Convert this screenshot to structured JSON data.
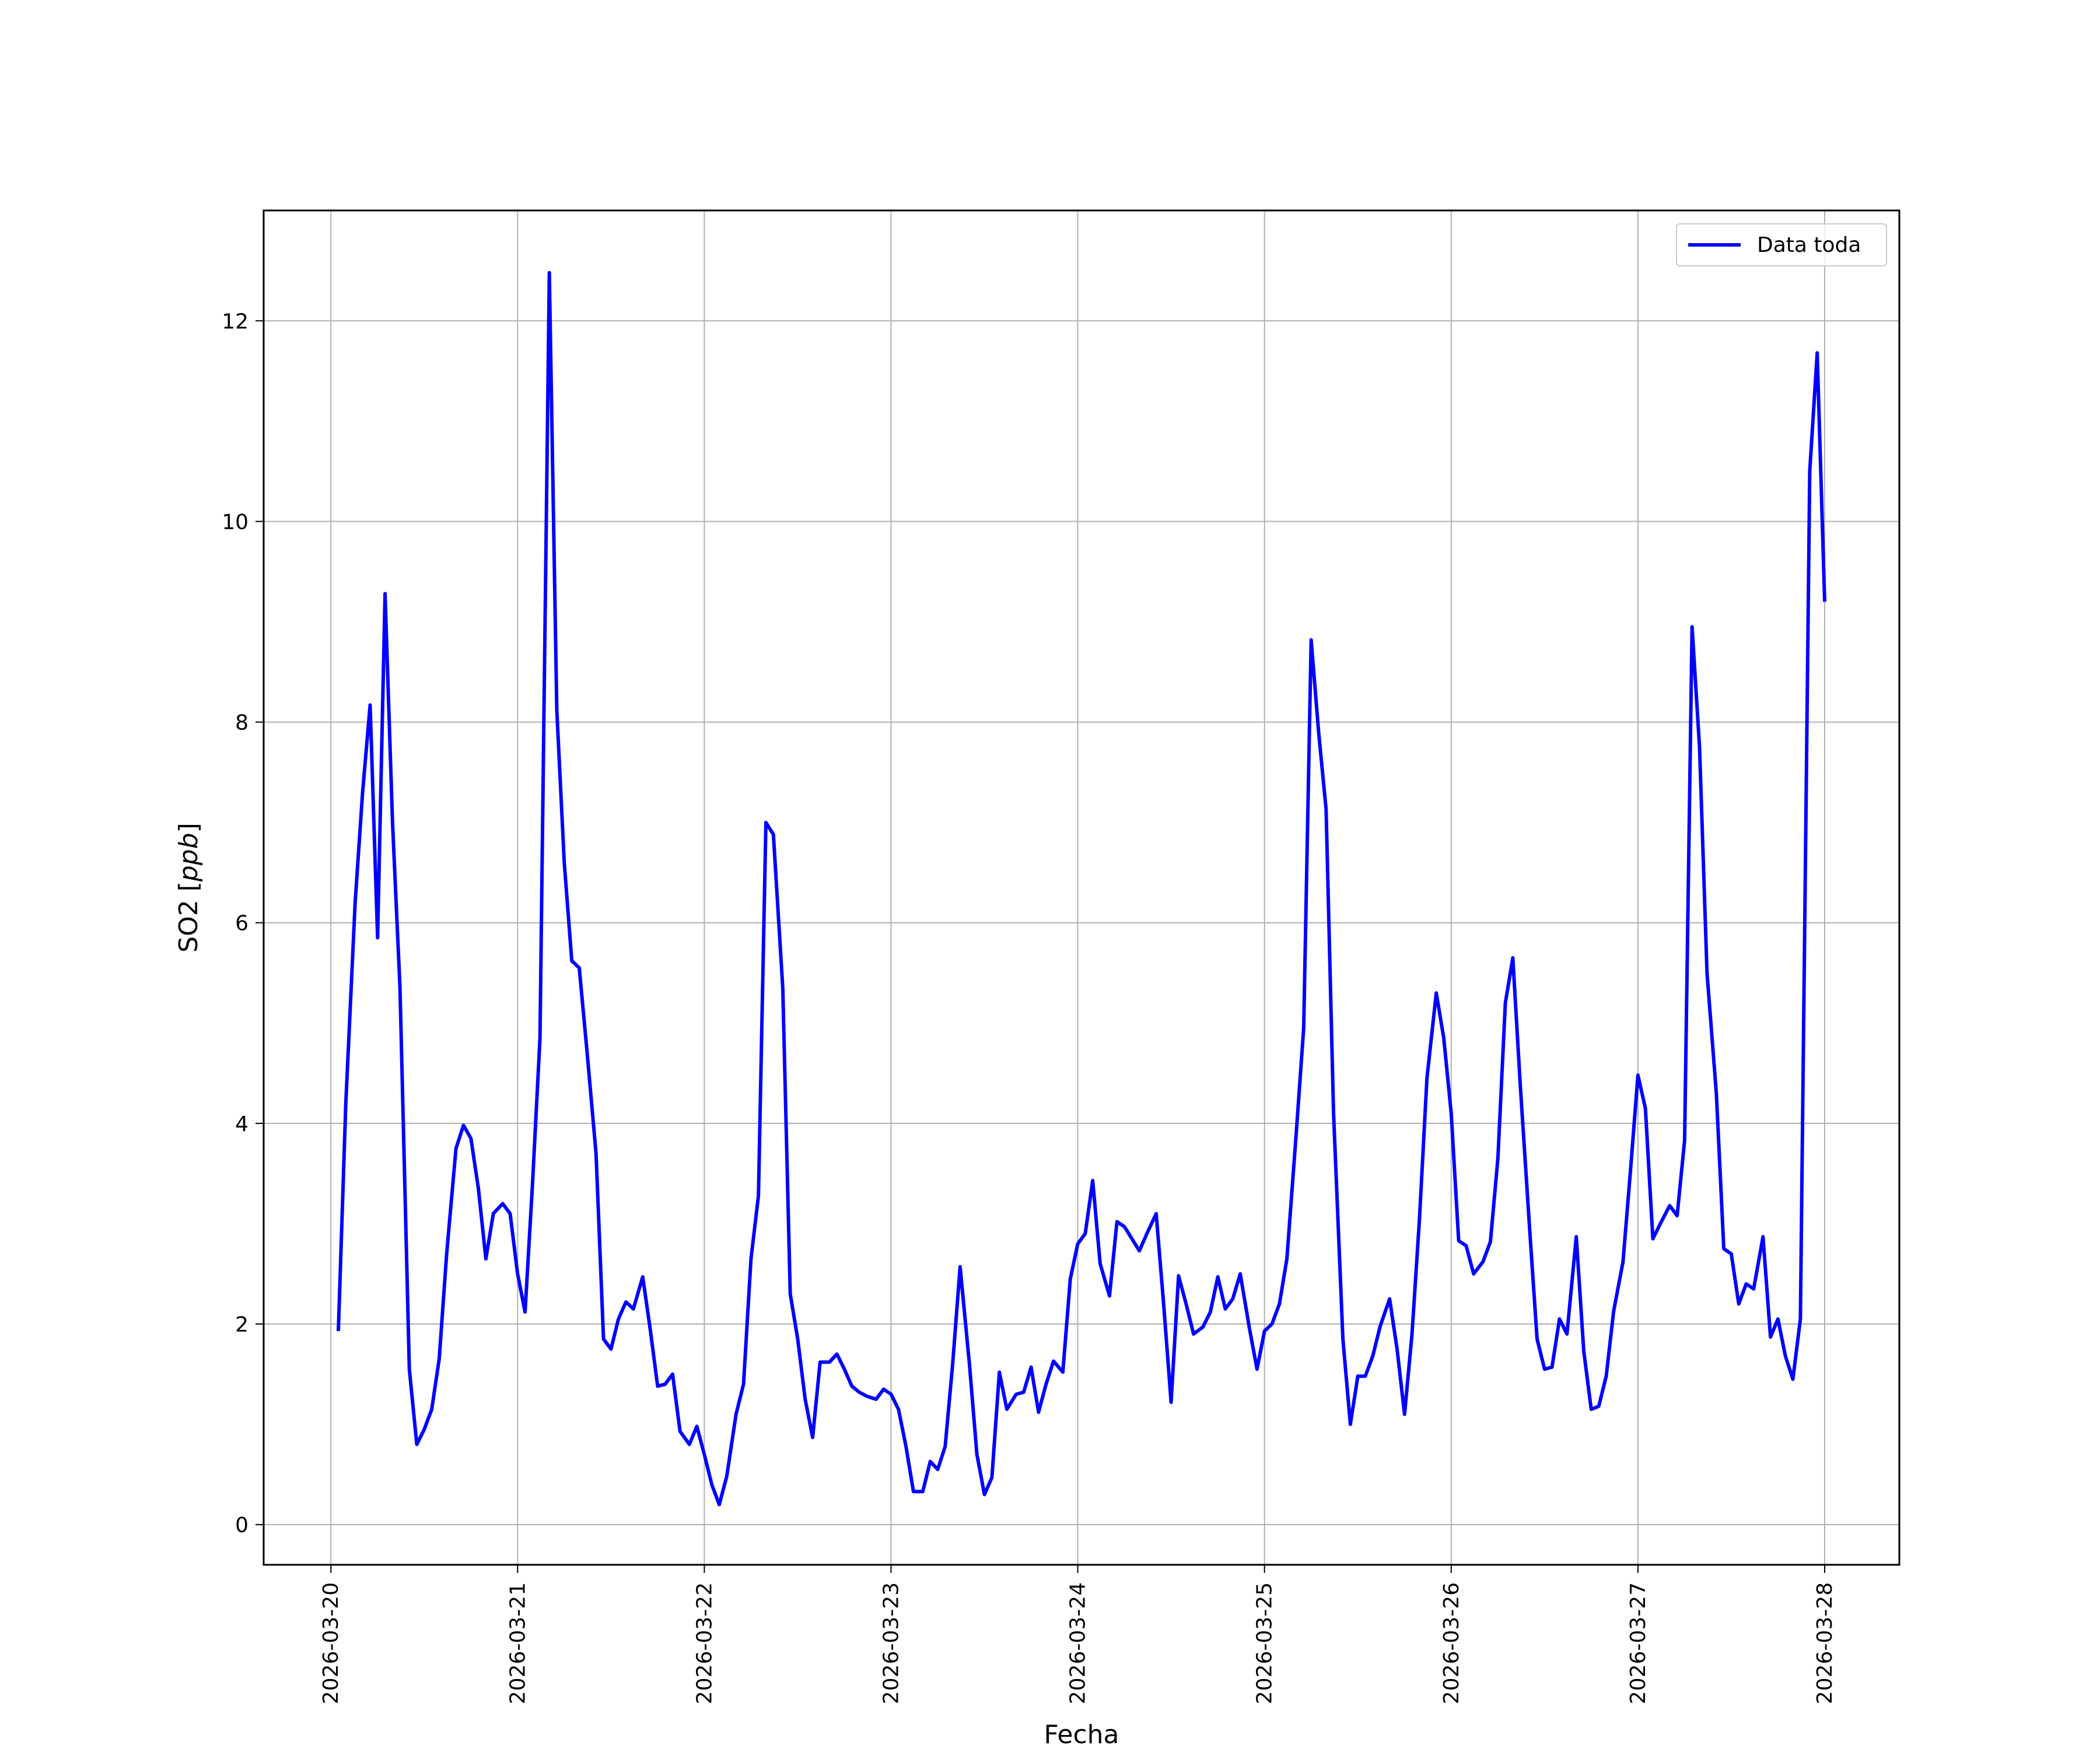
{
  "chart_data": {
    "type": "line",
    "xlabel": "Fecha",
    "ylabel_text": "SO2 [",
    "ylabel_unit": "ppb",
    "ylabel_close": "]",
    "x_tick_labels": [
      "2026-03-20",
      "2026-03-21",
      "2026-03-22",
      "2026-03-23",
      "2026-03-24",
      "2026-03-25",
      "2026-03-26",
      "2026-03-27",
      "2026-03-28"
    ],
    "y_ticks": [
      0,
      2,
      4,
      6,
      8,
      10,
      12
    ],
    "xlim": [
      -0.36,
      8.4
    ],
    "ylim": [
      -0.4,
      13.1
    ],
    "grid": true,
    "legend_position": "top-right",
    "series": [
      {
        "name": "Data toda",
        "color": "#0000ff",
        "x": [
          0.04,
          0.08,
          0.13,
          0.17,
          0.21,
          0.25,
          0.29,
          0.33,
          0.37,
          0.42,
          0.46,
          0.5,
          0.54,
          0.58,
          0.62,
          0.67,
          0.71,
          0.75,
          0.79,
          0.83,
          0.87,
          0.92,
          0.96,
          1.0,
          1.04,
          1.08,
          1.12,
          1.17,
          1.21,
          1.25,
          1.29,
          1.33,
          1.37,
          1.42,
          1.46,
          1.5,
          1.54,
          1.58,
          1.62,
          1.67,
          1.71,
          1.75,
          1.79,
          1.83,
          1.87,
          1.92,
          1.96,
          2.0,
          2.04,
          2.08,
          2.12,
          2.17,
          2.21,
          2.25,
          2.29,
          2.33,
          2.37,
          2.42,
          2.46,
          2.5,
          2.54,
          2.58,
          2.62,
          2.67,
          2.71,
          2.75,
          2.79,
          2.83,
          2.87,
          2.92,
          2.96,
          3.0,
          3.04,
          3.08,
          3.12,
          3.17,
          3.21,
          3.25,
          3.29,
          3.33,
          3.37,
          3.42,
          3.46,
          3.5,
          3.54,
          3.58,
          3.62,
          3.67,
          3.71,
          3.75,
          3.79,
          3.83,
          3.87,
          3.92,
          3.96,
          4.0,
          4.04,
          4.08,
          4.12,
          4.17,
          4.21,
          4.25,
          4.29,
          4.33,
          4.37,
          4.42,
          4.46,
          4.5,
          4.54,
          4.58,
          4.62,
          4.67,
          4.71,
          4.75,
          4.79,
          4.83,
          4.87,
          4.92,
          4.96,
          5.0,
          5.04,
          5.08,
          5.12,
          5.17,
          5.21,
          5.25,
          5.29,
          5.33,
          5.37,
          5.42,
          5.46,
          5.5,
          5.54,
          5.58,
          5.62,
          5.67,
          5.71,
          5.75,
          5.79,
          5.83,
          5.87,
          5.92,
          5.96,
          6.0,
          6.04,
          6.08,
          6.12,
          6.17,
          6.21,
          6.25,
          6.29,
          6.33,
          6.37,
          6.42,
          6.46,
          6.5,
          6.54,
          6.58,
          6.62,
          6.67,
          6.71,
          6.75,
          6.79,
          6.83,
          6.87,
          6.92,
          6.96,
          7.0,
          7.04,
          7.08,
          7.12,
          7.17,
          7.21,
          7.25,
          7.29,
          7.33,
          7.37,
          7.42,
          7.46,
          7.5,
          7.54,
          7.58,
          7.62,
          7.67,
          7.71,
          7.75,
          7.79,
          7.83,
          7.87,
          7.92,
          7.96,
          8.0
        ],
        "y": [
          1.93,
          4.2,
          6.2,
          7.3,
          8.17,
          5.85,
          9.28,
          7.0,
          5.35,
          1.55,
          0.8,
          0.95,
          1.15,
          1.65,
          2.7,
          3.75,
          3.98,
          3.85,
          3.35,
          2.65,
          3.1,
          3.2,
          3.1,
          2.5,
          2.12,
          3.4,
          4.85,
          12.48,
          8.12,
          6.6,
          5.62,
          5.55,
          4.75,
          3.7,
          1.85,
          1.75,
          2.05,
          2.22,
          2.15,
          2.47,
          1.95,
          1.38,
          1.4,
          1.5,
          0.93,
          0.8,
          0.98,
          0.7,
          0.4,
          0.2,
          0.48,
          1.1,
          1.4,
          2.65,
          3.28,
          7.0,
          6.88,
          5.35,
          2.3,
          1.85,
          1.25,
          0.87,
          1.62,
          1.62,
          1.7,
          1.55,
          1.38,
          1.32,
          1.28,
          1.25,
          1.35,
          1.3,
          1.15,
          0.78,
          0.33,
          0.33,
          0.63,
          0.55,
          0.78,
          1.6,
          2.57,
          1.6,
          0.7,
          0.3,
          0.47,
          1.52,
          1.15,
          1.3,
          1.32,
          1.57,
          1.12,
          1.4,
          1.63,
          1.52,
          2.45,
          2.8,
          2.9,
          3.43,
          2.6,
          2.28,
          3.02,
          2.97,
          2.85,
          2.73,
          2.9,
          3.1,
          2.2,
          1.22,
          2.48,
          2.2,
          1.9,
          1.97,
          2.12,
          2.47,
          2.15,
          2.25,
          2.5,
          1.95,
          1.55,
          1.93,
          2.0,
          2.2,
          2.65,
          3.9,
          4.95,
          8.82,
          7.9,
          7.13,
          4.1,
          1.85,
          1.0,
          1.48,
          1.48,
          1.68,
          1.98,
          2.25,
          1.75,
          1.1,
          1.9,
          3.05,
          4.45,
          5.3,
          4.85,
          4.1,
          2.83,
          2.78,
          2.5,
          2.62,
          2.82,
          3.65,
          5.2,
          5.65,
          4.38,
          2.95,
          1.85,
          1.55,
          1.57,
          2.05,
          1.9,
          2.87,
          1.73,
          1.15,
          1.18,
          1.48,
          2.13,
          2.62,
          3.53,
          4.48,
          4.15,
          2.85,
          3.0,
          3.18,
          3.08,
          3.83,
          8.95,
          7.75,
          5.5,
          4.3,
          2.75,
          2.7,
          2.2,
          2.4,
          2.35,
          2.87,
          1.87,
          2.05,
          1.68,
          1.45,
          2.05,
          10.5,
          11.68,
          9.2
        ]
      }
    ]
  }
}
